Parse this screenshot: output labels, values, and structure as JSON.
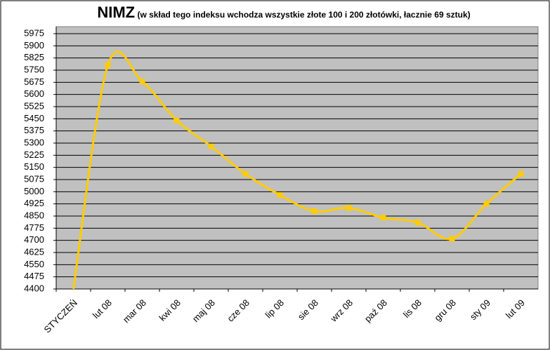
{
  "chart_data": {
    "type": "line",
    "title": "NIMZ",
    "subtitle": "(w skład tego indeksu wchodza wszystkie  złote 100 i 200 złotówki, łacznie 69 sztuk)",
    "categories": [
      "STYCZEŃ",
      "lut 08",
      "mar 08",
      "kwi 08",
      "maj 08",
      "cze 08",
      "lip 08",
      "sie 08",
      "wrz 08",
      "paź 08",
      "lis 08",
      "gru 08",
      "sty 09",
      "lut 09"
    ],
    "series": [
      {
        "name": "NIMZ",
        "color": "#ffcc00",
        "values": [
          4400,
          5780,
          5680,
          5440,
          5280,
          5110,
          4980,
          4880,
          4900,
          4840,
          4810,
          4710,
          4925,
          5110
        ]
      }
    ],
    "ylim": [
      4400,
      5975
    ],
    "yticks": [
      4400,
      4475,
      4550,
      4625,
      4700,
      4775,
      4850,
      4925,
      5000,
      5075,
      5150,
      5225,
      5300,
      5375,
      5450,
      5525,
      5600,
      5675,
      5750,
      5825,
      5900,
      5975
    ],
    "grid": true
  }
}
